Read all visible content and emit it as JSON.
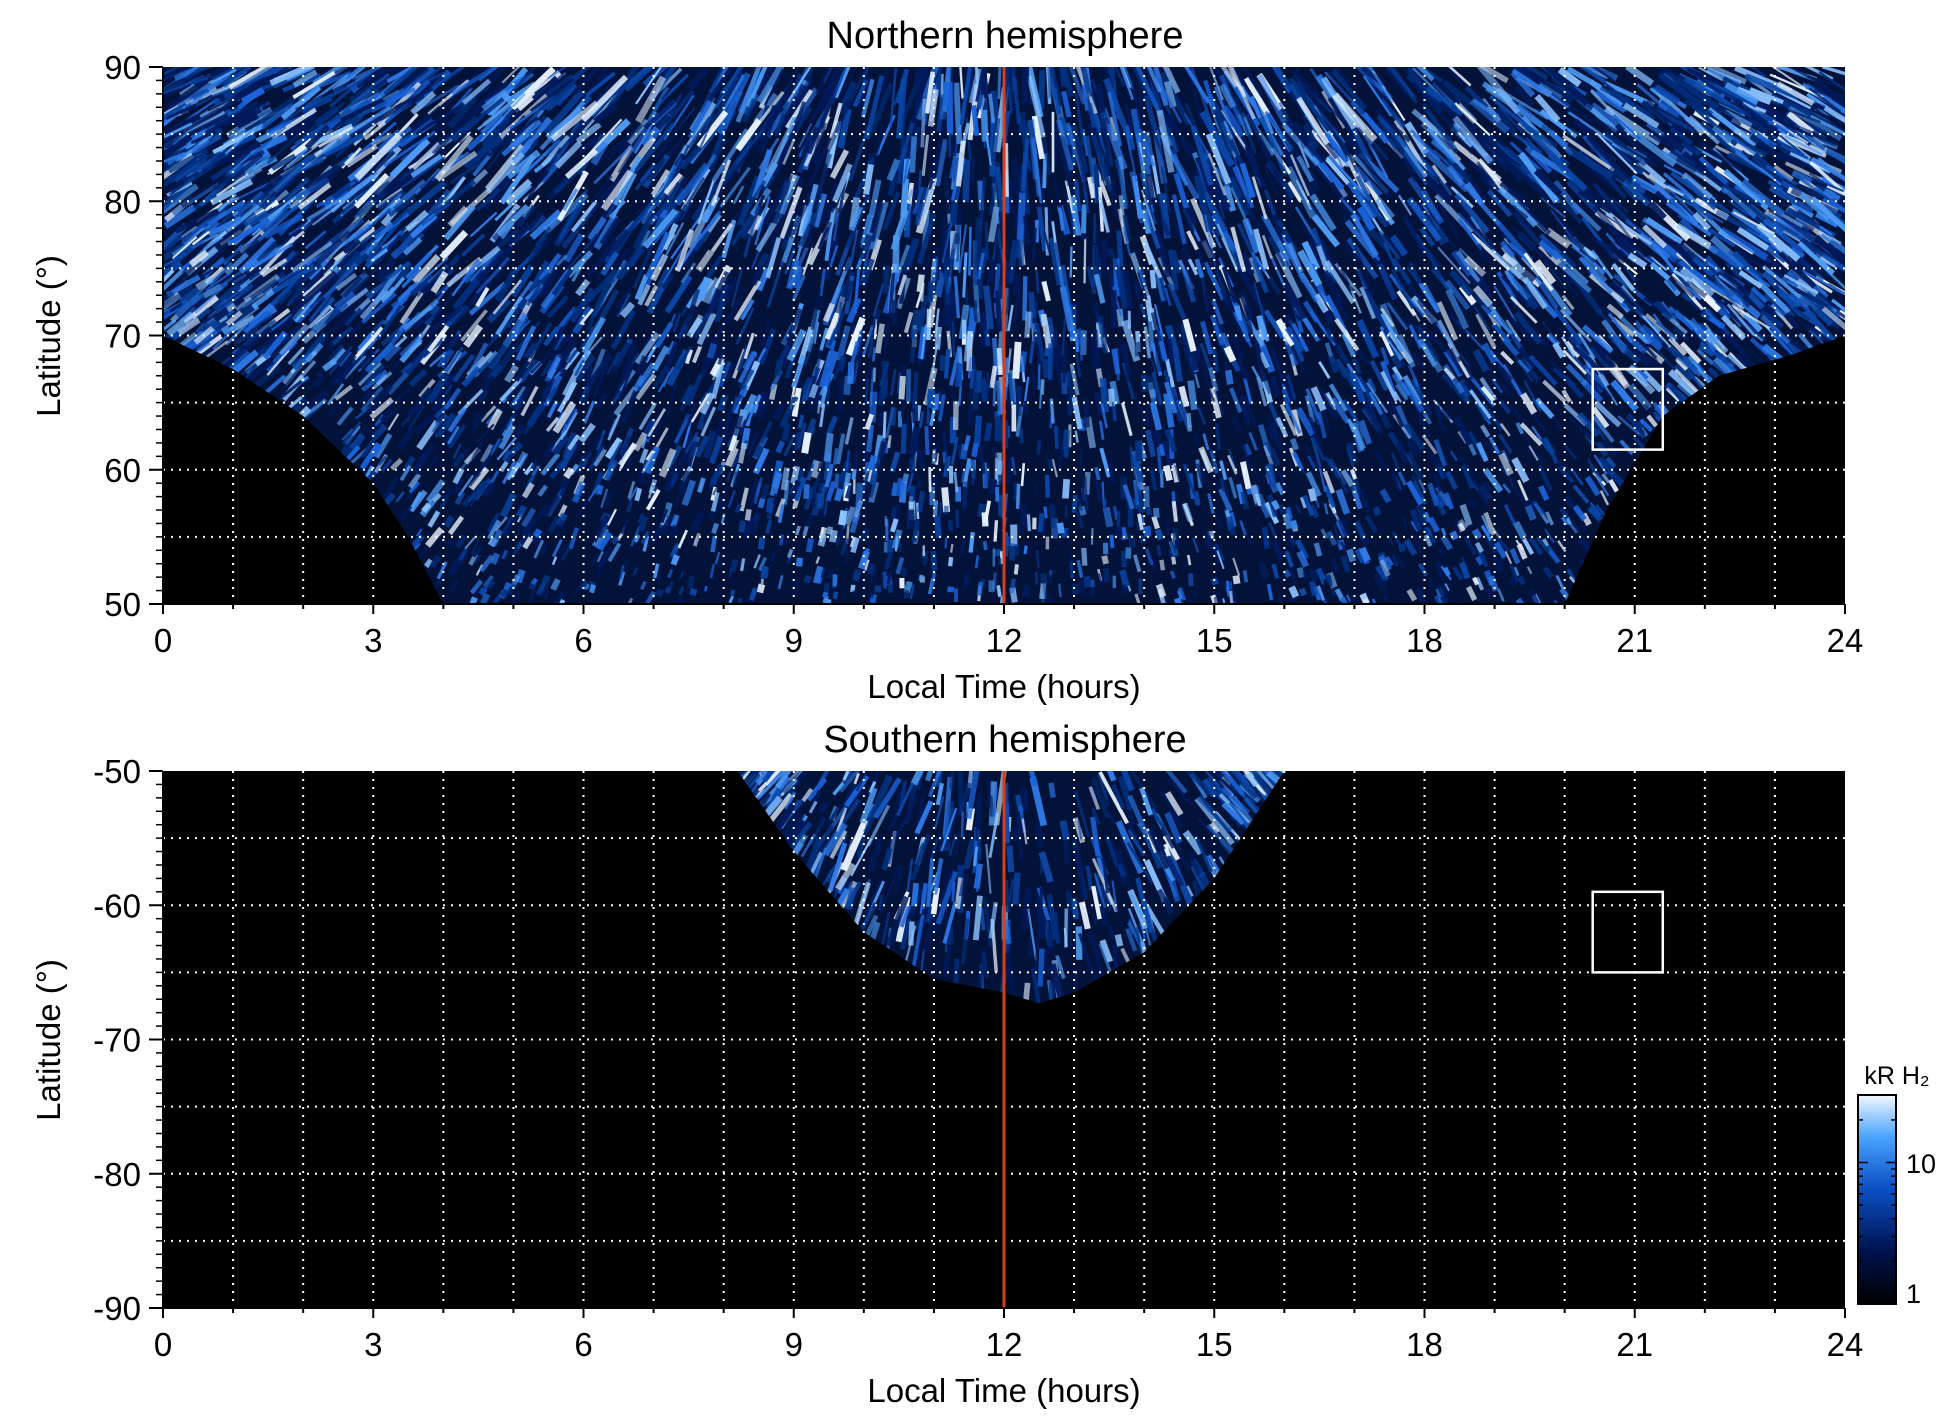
{
  "chart_data": [
    {
      "type": "heatmap",
      "title": "Northern hemisphere",
      "xlabel": "Local Time (hours)",
      "ylabel": "Latitude (°)",
      "xlim": [
        0,
        24
      ],
      "ylim": [
        50,
        90
      ],
      "x_ticks": [
        "0",
        "3",
        "6",
        "9",
        "12",
        "15",
        "18",
        "21",
        "24"
      ],
      "y_ticks": [
        "90",
        "80",
        "70",
        "60",
        "50"
      ],
      "grid": true,
      "noon_line_local_time": 12,
      "box": {
        "lt_range": [
          20.4,
          21.4
        ],
        "lat_range": [
          61.5,
          67.5
        ]
      },
      "coverage_boundary": [
        [
          0,
          70
        ],
        [
          1,
          67.5
        ],
        [
          2,
          64
        ],
        [
          3,
          59
        ],
        [
          3.5,
          55
        ],
        [
          4,
          50
        ],
        [
          20,
          50
        ],
        [
          20.6,
          57
        ],
        [
          21.4,
          64
        ],
        [
          22.2,
          67
        ],
        [
          23.2,
          68.5
        ],
        [
          24,
          70
        ]
      ]
    },
    {
      "type": "heatmap",
      "title": "Southern hemisphere",
      "xlabel": "Local Time (hours)",
      "ylabel": "Latitude (°)",
      "xlim": [
        0,
        24
      ],
      "ylim": [
        -90,
        -50
      ],
      "x_ticks": [
        "0",
        "3",
        "6",
        "9",
        "12",
        "15",
        "18",
        "21",
        "24"
      ],
      "y_ticks": [
        "-50",
        "-60",
        "-70",
        "-80",
        "-90"
      ],
      "grid": true,
      "noon_line_local_time": 12,
      "box": {
        "lt_range": [
          20.4,
          21.4
        ],
        "lat_range": [
          -65,
          -59
        ]
      },
      "coverage_boundary": [
        [
          8.2,
          -50
        ],
        [
          9,
          -56
        ],
        [
          10,
          -62
        ],
        [
          11,
          -65.5
        ],
        [
          12,
          -66.5
        ],
        [
          12.5,
          -67.3
        ],
        [
          13,
          -66.5
        ],
        [
          14,
          -63.5
        ],
        [
          15,
          -58
        ],
        [
          15.5,
          -54
        ],
        [
          16,
          -50
        ]
      ]
    }
  ],
  "colorbar": {
    "label": "kR H₂",
    "scale": "log",
    "range": [
      1,
      30
    ],
    "ticks": [
      "10",
      "1"
    ]
  },
  "colors": {
    "background": "#000000",
    "emission_low": "#001a66",
    "emission_mid": "#1a63d9",
    "emission_high": "#e6f2ff",
    "noon_line": "#d2401e",
    "grid": "#ffffff"
  }
}
